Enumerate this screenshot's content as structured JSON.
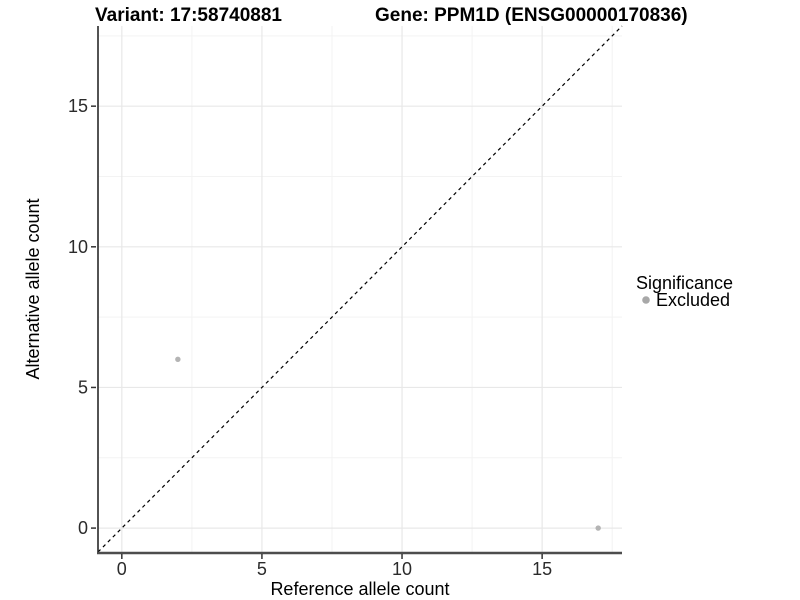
{
  "header": {
    "variant_title": "Variant: 17:58740881",
    "gene_title": "Gene: PPM1D (ENSG00000170836)"
  },
  "chart_data": {
    "type": "scatter",
    "title": "Variant: 17:58740881    Gene: PPM1D (ENSG00000170836)",
    "xlabel": "Reference allele count",
    "ylabel": "Alternative allele count",
    "xlim": [
      -0.85,
      17.85
    ],
    "ylim": [
      -0.85,
      17.85
    ],
    "x_ticks": [
      0,
      5,
      10,
      15
    ],
    "y_ticks": [
      0,
      5,
      10,
      15
    ],
    "x_minor_ticks": [
      2.5,
      7.5,
      12.5,
      17.5
    ],
    "y_minor_ticks": [
      2.5,
      7.5,
      12.5,
      17.5
    ],
    "grid": true,
    "series": [
      {
        "name": "Excluded",
        "color": "#b4b4b4",
        "points": [
          {
            "x": 2,
            "y": 6
          },
          {
            "x": 17,
            "y": 0
          }
        ]
      }
    ],
    "identity_line": {
      "label": "y = x",
      "style": "dashed",
      "color": "#000000",
      "from": {
        "x": -0.85,
        "y": -0.85
      },
      "to": {
        "x": 17.85,
        "y": 17.85
      }
    },
    "legend": {
      "position": "right",
      "title": "Significance",
      "items": [
        {
          "label": "Excluded",
          "color": "#a8a8a8"
        }
      ]
    },
    "colors": {
      "background": "#ffffff",
      "grid_major": "#e8e8e8",
      "grid_minor": "#f3f3f3",
      "axis_line_left": "#1a1a1a",
      "axis_line_bottom": "#4d4d4d",
      "tick_mark": "#333333",
      "point": "#b4b4b4"
    }
  }
}
